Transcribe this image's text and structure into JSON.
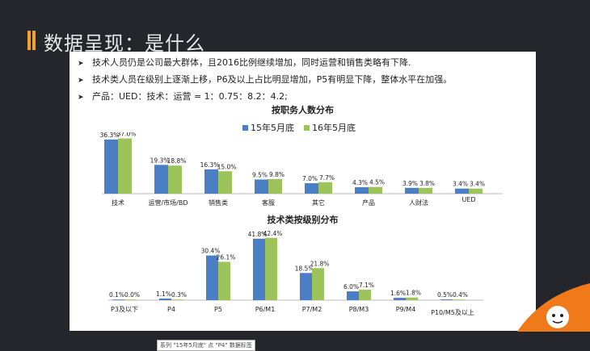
{
  "slide": {
    "title": "数据呈现：是什么",
    "bullets": [
      "技术人员仍是公司最大群体，且2016比例继续增加，同时运营和销售类略有下降.",
      "技术类人员在级别上逐渐上移，P6及以上占比明显增加，P5有明显下降，整体水平在加强。",
      "产品：UED：技术：运营 = 1：0.75：8.2：4.2;"
    ],
    "bullet_mark": "➤"
  },
  "legend": {
    "series1": "15年5月底",
    "series2": "16年5月底"
  },
  "colors": {
    "series1": "#4a7fc6",
    "series2": "#9cc45a",
    "accent": "#f2a12b",
    "background": "#25262b"
  },
  "tooltip": "系列 \"15年5月底\" 点 \"P4\" 数据标签",
  "chart_data": [
    {
      "type": "bar",
      "title": "按职务人数分布",
      "categories": [
        "技术",
        "运营/市场/BD",
        "销售类",
        "客服",
        "其它",
        "产品",
        "人财法",
        "UED"
      ],
      "series": [
        {
          "name": "15年5月底",
          "values": [
            36.3,
            19.3,
            16.3,
            9.5,
            7.0,
            4.3,
            3.9,
            3.4
          ],
          "labels": [
            "36.3%",
            "19.3%",
            "16.3%",
            "9.5%",
            "7.0%",
            "4.3%",
            "3.9%",
            "3.4%"
          ]
        },
        {
          "name": "16年5月底",
          "values": [
            37.0,
            18.8,
            15.0,
            9.8,
            7.7,
            4.5,
            3.8,
            3.4
          ],
          "labels": [
            "37.0%",
            "18.8%",
            "15.0%",
            "9.8%",
            "7.7%",
            "4.5%",
            "3.8%",
            "3.4%"
          ]
        }
      ],
      "ylim": [
        0,
        40
      ]
    },
    {
      "type": "bar",
      "title": "技术类按级别分布",
      "categories": [
        "P3及以下",
        "P4",
        "P5",
        "P6/M1",
        "P7/M2",
        "P8/M3",
        "P9/M4",
        "P10/M5及以上"
      ],
      "series": [
        {
          "name": "15年5月底",
          "values": [
            0.1,
            1.1,
            30.4,
            41.8,
            18.5,
            6.0,
            1.6,
            0.5
          ],
          "labels": [
            "0.1%",
            "1.1%",
            "30.4%",
            "41.8%",
            "18.5%",
            "6.0%",
            "1.6%",
            "0.5%"
          ]
        },
        {
          "name": "16年5月底",
          "values": [
            0.0,
            0.3,
            26.1,
            42.4,
            21.8,
            7.1,
            1.8,
            0.4
          ],
          "labels": [
            "0.0%",
            "0.3%",
            "26.1%",
            "42.4%",
            "21.8%",
            "7.1%",
            "1.8%",
            "0.4%"
          ]
        }
      ],
      "ylim": [
        0,
        45
      ]
    }
  ]
}
